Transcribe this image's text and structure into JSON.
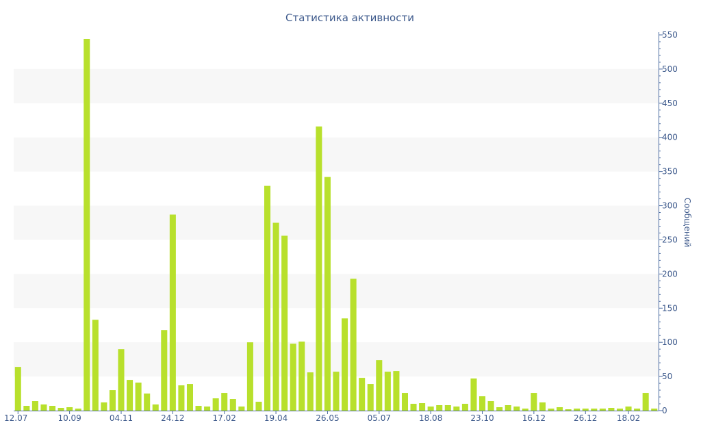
{
  "chart_data": {
    "type": "bar",
    "title": "Статистика активности",
    "xlabel": "",
    "ylabel": "Сообщений",
    "ylim": [
      0,
      550
    ],
    "yticks": [
      0,
      50,
      100,
      150,
      200,
      250,
      300,
      350,
      400,
      450,
      500,
      550
    ],
    "y_axis_side": "right",
    "grid": "alternating horizontal bands",
    "x_tick_labels": [
      "12.07",
      "10.09",
      "04.11",
      "24.12",
      "17.02",
      "19.04",
      "26.05",
      "05.07",
      "18.08",
      "23.10",
      "16.12",
      "26.12",
      "18.02"
    ],
    "bar_color": "#b8e02c",
    "band_color": "#f7f7f7",
    "text_color": "#3e5a8c",
    "series": [
      {
        "values": [
          64,
          7,
          14,
          9,
          7,
          4,
          5,
          3,
          544,
          133,
          12,
          30,
          90,
          45,
          41,
          25,
          9,
          118,
          287,
          37,
          39,
          7,
          6,
          18,
          26,
          17,
          6,
          100,
          13,
          329,
          275,
          256,
          98,
          101,
          56,
          416,
          342,
          57,
          135,
          193,
          48,
          39,
          74,
          57,
          58,
          26,
          10,
          11,
          6,
          8,
          8,
          6,
          10,
          47,
          21,
          14,
          5,
          8,
          6,
          3,
          26,
          12,
          3,
          5,
          2,
          3,
          3,
          3,
          3,
          4,
          3,
          6,
          3,
          26,
          3
        ]
      }
    ]
  }
}
